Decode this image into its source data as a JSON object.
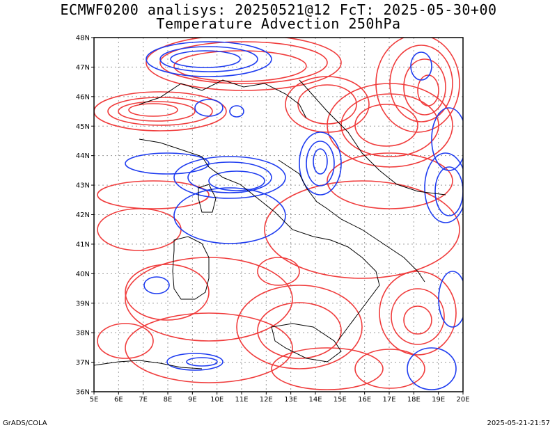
{
  "header": {
    "line1": "ECMWF0200 analisys: 20250521@12 FcT: 2025-05-30+00",
    "line2": "Temperature Advection 250hPa"
  },
  "footer": {
    "left": "GrADS/COLA",
    "right": "2025-05-21-21:57"
  },
  "axes": {
    "lon_range": [
      5,
      20
    ],
    "lat_range": [
      36,
      48
    ],
    "x_ticks": [
      "5E",
      "6E",
      "7E",
      "8E",
      "9E",
      "10E",
      "11E",
      "12E",
      "13E",
      "14E",
      "15E",
      "16E",
      "17E",
      "18E",
      "19E",
      "20E"
    ],
    "y_ticks": [
      "36N",
      "37N",
      "38N",
      "39N",
      "40N",
      "41N",
      "42N",
      "43N",
      "44N",
      "45N",
      "46N",
      "47N",
      "48N"
    ],
    "grid": "dotted"
  },
  "colors": {
    "positive": "#f03c3c",
    "negative": "#1e3cf0",
    "coast": "#000000",
    "grid": "#999999"
  }
}
